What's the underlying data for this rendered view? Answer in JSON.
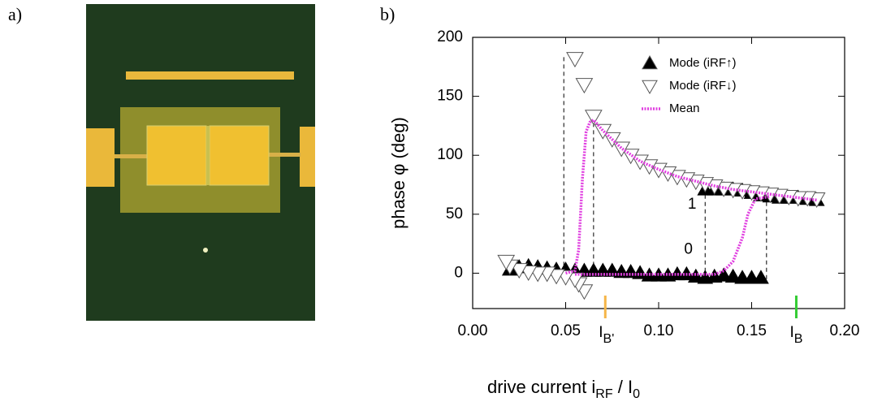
{
  "panels": [
    "a)",
    "b)"
  ],
  "chart_data": {
    "type": "scatter",
    "ylabel": "phase φ (deg)",
    "xlabel": [
      {
        "text": "drive current   i"
      },
      {
        "text": "RF",
        "sub": true
      },
      {
        "text": " / I"
      },
      {
        "text": "0",
        "sub": true
      }
    ],
    "xlim": [
      0,
      0.2
    ],
    "ylim": [
      -30,
      200
    ],
    "xticks": [
      {
        "value": 0,
        "label": "0.00"
      },
      0.05,
      {
        "value": 0.1,
        "label": "0.10"
      },
      0.15,
      {
        "value": 0.2,
        "label": "0.20"
      }
    ],
    "yticks": [
      0,
      50,
      100,
      150,
      200
    ],
    "legend": "upper right",
    "series": [
      {
        "name": "Mode (iRF↑)",
        "marker": "triangle-up",
        "color": "#000000",
        "x": [
          0.02,
          0.025,
          0.03,
          0.035,
          0.04,
          0.045,
          0.05,
          0.055,
          0.06,
          0.065,
          0.07,
          0.075,
          0.08,
          0.085,
          0.09,
          0.095,
          0.1,
          0.105,
          0.11,
          0.115,
          0.12,
          0.125,
          0.13,
          0.135,
          0.14,
          0.145,
          0.15,
          0.155,
          0.125,
          0.13,
          0.135,
          0.14,
          0.145,
          0.15,
          0.155,
          0.16,
          0.165,
          0.17,
          0.175,
          0.18,
          0.185
        ],
        "values": [
          3,
          5,
          6,
          5,
          4,
          3,
          3,
          2,
          2,
          2,
          2,
          2,
          1,
          1,
          0,
          -2,
          -2,
          -2,
          -1,
          -1,
          -3,
          -4,
          -3,
          -2,
          -3,
          -4,
          -4,
          -4,
          71,
          71,
          71,
          71,
          70,
          68,
          66,
          65,
          64,
          64,
          64,
          63,
          62
        ]
      },
      {
        "name": "Mode (iRF↓)",
        "marker": "triangle-down",
        "color": "#ffffff",
        "x": [
          0.185,
          0.18,
          0.175,
          0.17,
          0.165,
          0.16,
          0.155,
          0.15,
          0.145,
          0.14,
          0.135,
          0.13,
          0.125,
          0.12,
          0.115,
          0.11,
          0.105,
          0.1,
          0.095,
          0.09,
          0.085,
          0.08,
          0.075,
          0.07,
          0.065,
          0.06,
          0.055,
          0.06,
          0.057,
          0.055,
          0.05,
          0.045,
          0.04,
          0.035,
          0.03,
          0.025,
          0.02,
          0.018
        ],
        "values": [
          63,
          64,
          64,
          65,
          66,
          67,
          68,
          69,
          70,
          71,
          72,
          74,
          76,
          78,
          80,
          82,
          85,
          88,
          91,
          95,
          100,
          106,
          114,
          121,
          133,
          160,
          182,
          -15,
          -9,
          -5,
          -3,
          -2,
          0,
          0,
          1,
          3,
          6,
          10
        ]
      },
      {
        "name": "Mean",
        "marker": "line",
        "color": "#e040e0",
        "x": [
          0.05,
          0.055,
          0.057,
          0.059,
          0.061,
          0.063,
          0.065,
          0.07,
          0.08,
          0.09,
          0.1,
          0.11,
          0.12,
          0.13,
          0.14,
          0.15,
          0.16,
          0.17,
          0.18,
          0.185,
          null,
          0.055,
          0.08,
          0.1,
          0.12,
          0.13,
          0.135,
          0.14,
          0.145,
          0.148,
          0.152,
          0.16
        ],
        "values": [
          0,
          2,
          20,
          80,
          120,
          128,
          130,
          121,
          106,
          95,
          88,
          82,
          78,
          74,
          71,
          69,
          67,
          65,
          63,
          62,
          null,
          -1,
          -1,
          -1,
          -1,
          -1,
          2,
          10,
          30,
          50,
          63,
          65
        ]
      }
    ],
    "reference_lines": [
      {
        "x": 0.049,
        "y": [
          0,
          185
        ]
      },
      {
        "x": 0.065,
        "y": [
          0,
          130
        ]
      },
      {
        "x": 0.125,
        "y": [
          -5,
          71
        ]
      },
      {
        "x": 0.158,
        "y": [
          -5,
          65
        ]
      }
    ],
    "annotations": [
      "1",
      "0"
    ],
    "current_markers": [
      {
        "x": 0.0713,
        "color": "#f5b548",
        "label": "I",
        "sub": "B'"
      },
      {
        "x": 0.174,
        "color": "#33cc33",
        "label": "I",
        "sub": "B"
      }
    ]
  }
}
